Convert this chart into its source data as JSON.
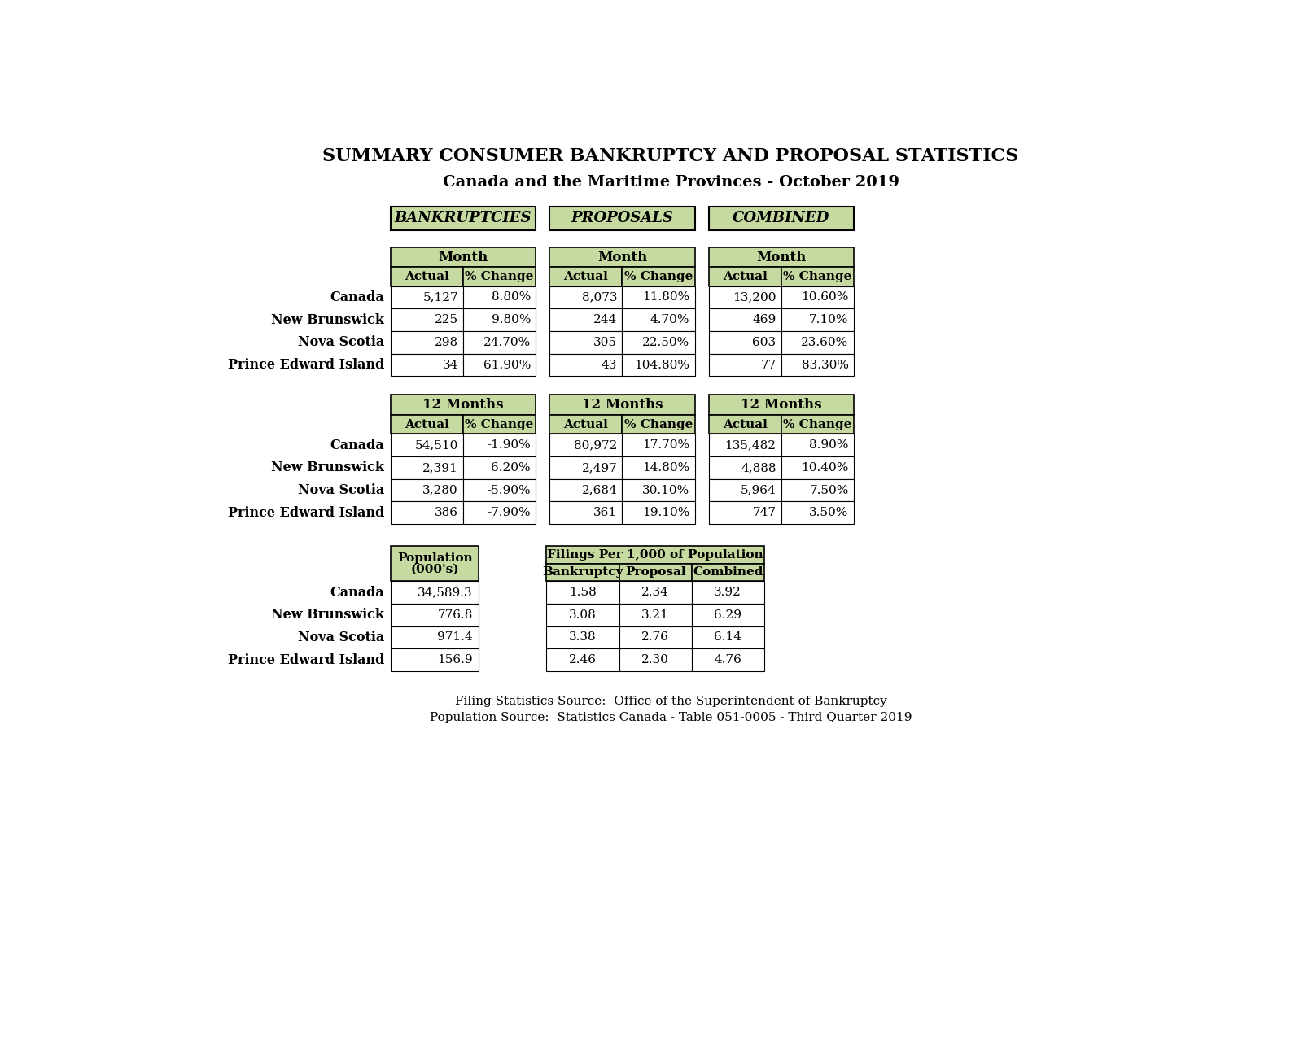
{
  "title1": "SUMMARY CONSUMER BANKRUPTCY AND PROPOSAL STATISTICS",
  "title2": "Canada and the Maritime Provinces - October 2019",
  "section_headers": [
    "BANKRUPTCIES",
    "PROPOSALS",
    "COMBINED"
  ],
  "row_labels": [
    "Canada",
    "New Brunswick",
    "Nova Scotia",
    "Prince Edward Island"
  ],
  "month_bankruptcies": [
    [
      "5,127",
      "8.80%"
    ],
    [
      "225",
      "9.80%"
    ],
    [
      "298",
      "24.70%"
    ],
    [
      "34",
      "61.90%"
    ]
  ],
  "month_proposals": [
    [
      "8,073",
      "11.80%"
    ],
    [
      "244",
      "4.70%"
    ],
    [
      "305",
      "22.50%"
    ],
    [
      "43",
      "104.80%"
    ]
  ],
  "month_combined": [
    [
      "13,200",
      "10.60%"
    ],
    [
      "469",
      "7.10%"
    ],
    [
      "603",
      "23.60%"
    ],
    [
      "77",
      "83.30%"
    ]
  ],
  "yr12_bankruptcies": [
    [
      "54,510",
      "-1.90%"
    ],
    [
      "2,391",
      "6.20%"
    ],
    [
      "3,280",
      "-5.90%"
    ],
    [
      "386",
      "-7.90%"
    ]
  ],
  "yr12_proposals": [
    [
      "80,972",
      "17.70%"
    ],
    [
      "2,497",
      "14.80%"
    ],
    [
      "2,684",
      "30.10%"
    ],
    [
      "361",
      "19.10%"
    ]
  ],
  "yr12_combined": [
    [
      "135,482",
      "8.90%"
    ],
    [
      "4,888",
      "10.40%"
    ],
    [
      "5,964",
      "7.50%"
    ],
    [
      "747",
      "3.50%"
    ]
  ],
  "pop_header1": "Population",
  "pop_header2": "(000's)",
  "filings_header": "Filings Per 1,000 of Population",
  "filings_sub_headers": [
    "Bankruptcy",
    "Proposal",
    "Combined"
  ],
  "population": [
    "34,589.3",
    "776.8",
    "971.4",
    "156.9"
  ],
  "filings_per_1000": [
    [
      "1.58",
      "2.34",
      "3.92"
    ],
    [
      "3.08",
      "3.21",
      "6.29"
    ],
    [
      "3.38",
      "2.76",
      "6.14"
    ],
    [
      "2.46",
      "2.30",
      "4.76"
    ]
  ],
  "footer1": "Filing Statistics Source:  Office of the Superintendent of Bankruptcy",
  "footer2": "Population Source:  Statistics Canada - Table 051-0005 - Third Quarter 2019",
  "header_bg": "#c5d9a0",
  "cell_bg": "#ffffff",
  "border_color": "#000000",
  "bg_color": "#ffffff"
}
